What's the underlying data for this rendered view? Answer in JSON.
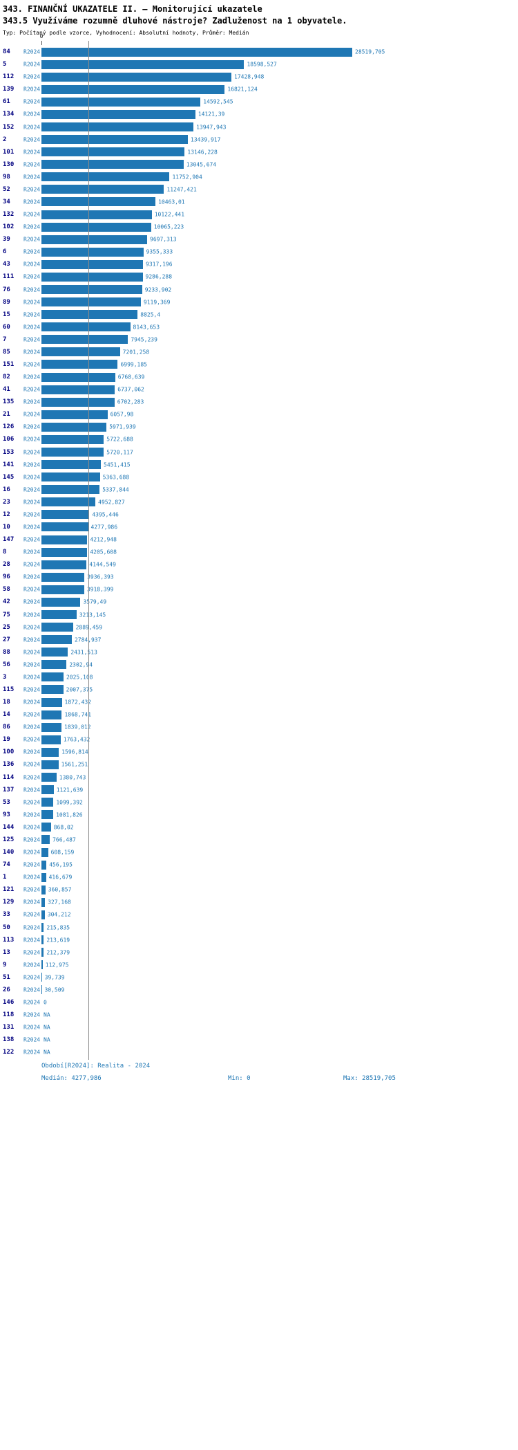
{
  "header": {
    "title": "343. FINANČNÍ UKAZATELE II. – Monitorující ukazatele",
    "subtitle": "343.5 Využíváme rozumně dluhové nástroje? Zadluženost na 1 obyvatele.",
    "meta": "Typ: Počítaný podle vzorce, Vyhodnocení: Absolutní hodnoty, Průměr: Medián"
  },
  "chart_data": {
    "type": "bar",
    "orientation": "horizontal",
    "title": "343.5 Využíváme rozumně dluhové nástroje? Zadluženost na 1 obyvatele.",
    "period": "R2024",
    "bar_color": "#1f77b4",
    "value_axis": {
      "zero_label": "0",
      "min": 0,
      "max": 28519.705
    },
    "median_value": 4277.986,
    "median_line": true,
    "rows": [
      {
        "id": "84",
        "period": "R2024",
        "value": 28519.705,
        "label": "28519,705"
      },
      {
        "id": "5",
        "period": "R2024",
        "value": 18598.527,
        "label": "18598,527"
      },
      {
        "id": "112",
        "period": "R2024",
        "value": 17428.948,
        "label": "17428,948"
      },
      {
        "id": "139",
        "period": "R2024",
        "value": 16821.124,
        "label": "16821,124"
      },
      {
        "id": "61",
        "period": "R2024",
        "value": 14592.545,
        "label": "14592,545"
      },
      {
        "id": "134",
        "period": "R2024",
        "value": 14121.39,
        "label": "14121,39"
      },
      {
        "id": "152",
        "period": "R2024",
        "value": 13947.943,
        "label": "13947,943"
      },
      {
        "id": "2",
        "period": "R2024",
        "value": 13439.917,
        "label": "13439,917"
      },
      {
        "id": "101",
        "period": "R2024",
        "value": 13146.228,
        "label": "13146,228"
      },
      {
        "id": "130",
        "period": "R2024",
        "value": 13045.674,
        "label": "13045,674"
      },
      {
        "id": "98",
        "period": "R2024",
        "value": 11752.904,
        "label": "11752,904"
      },
      {
        "id": "52",
        "period": "R2024",
        "value": 11247.421,
        "label": "11247,421"
      },
      {
        "id": "34",
        "period": "R2024",
        "value": 10463.01,
        "label": "10463,01"
      },
      {
        "id": "132",
        "period": "R2024",
        "value": 10122.441,
        "label": "10122,441"
      },
      {
        "id": "102",
        "period": "R2024",
        "value": 10065.223,
        "label": "10065,223"
      },
      {
        "id": "39",
        "period": "R2024",
        "value": 9697.313,
        "label": "9697,313"
      },
      {
        "id": "6",
        "period": "R2024",
        "value": 9355.333,
        "label": "9355,333"
      },
      {
        "id": "43",
        "period": "R2024",
        "value": 9317.196,
        "label": "9317,196"
      },
      {
        "id": "111",
        "period": "R2024",
        "value": 9286.288,
        "label": "9286,288"
      },
      {
        "id": "76",
        "period": "R2024",
        "value": 9233.902,
        "label": "9233,902"
      },
      {
        "id": "89",
        "period": "R2024",
        "value": 9119.369,
        "label": "9119,369"
      },
      {
        "id": "15",
        "period": "R2024",
        "value": 8825.4,
        "label": "8825,4"
      },
      {
        "id": "60",
        "period": "R2024",
        "value": 8143.653,
        "label": "8143,653"
      },
      {
        "id": "7",
        "period": "R2024",
        "value": 7945.239,
        "label": "7945,239"
      },
      {
        "id": "85",
        "period": "R2024",
        "value": 7201.258,
        "label": "7201,258"
      },
      {
        "id": "151",
        "period": "R2024",
        "value": 6999.185,
        "label": "6999,185"
      },
      {
        "id": "82",
        "period": "R2024",
        "value": 6768.639,
        "label": "6768,639"
      },
      {
        "id": "41",
        "period": "R2024",
        "value": 6737.062,
        "label": "6737,062"
      },
      {
        "id": "135",
        "period": "R2024",
        "value": 6702.283,
        "label": "6702,283"
      },
      {
        "id": "21",
        "period": "R2024",
        "value": 6057.98,
        "label": "6057,98"
      },
      {
        "id": "126",
        "period": "R2024",
        "value": 5971.939,
        "label": "5971,939"
      },
      {
        "id": "106",
        "period": "R2024",
        "value": 5722.688,
        "label": "5722,688"
      },
      {
        "id": "153",
        "period": "R2024",
        "value": 5720.117,
        "label": "5720,117"
      },
      {
        "id": "141",
        "period": "R2024",
        "value": 5451.415,
        "label": "5451,415"
      },
      {
        "id": "145",
        "period": "R2024",
        "value": 5363.688,
        "label": "5363,688"
      },
      {
        "id": "16",
        "period": "R2024",
        "value": 5337.844,
        "label": "5337,844"
      },
      {
        "id": "23",
        "period": "R2024",
        "value": 4952.827,
        "label": "4952,827"
      },
      {
        "id": "12",
        "period": "R2024",
        "value": 4395.446,
        "label": "4395,446"
      },
      {
        "id": "10",
        "period": "R2024",
        "value": 4277.986,
        "label": "4277,986"
      },
      {
        "id": "147",
        "period": "R2024",
        "value": 4212.948,
        "label": "4212,948"
      },
      {
        "id": "8",
        "period": "R2024",
        "value": 4205.608,
        "label": "4205,608"
      },
      {
        "id": "28",
        "period": "R2024",
        "value": 4144.549,
        "label": "4144,549"
      },
      {
        "id": "96",
        "period": "R2024",
        "value": 3936.393,
        "label": "3936,393"
      },
      {
        "id": "58",
        "period": "R2024",
        "value": 3918.399,
        "label": "3918,399"
      },
      {
        "id": "42",
        "period": "R2024",
        "value": 3579.49,
        "label": "3579,49"
      },
      {
        "id": "75",
        "period": "R2024",
        "value": 3213.145,
        "label": "3213,145"
      },
      {
        "id": "25",
        "period": "R2024",
        "value": 2889.459,
        "label": "2889,459"
      },
      {
        "id": "27",
        "period": "R2024",
        "value": 2784.937,
        "label": "2784,937"
      },
      {
        "id": "88",
        "period": "R2024",
        "value": 2431.513,
        "label": "2431,513"
      },
      {
        "id": "56",
        "period": "R2024",
        "value": 2302.94,
        "label": "2302,94"
      },
      {
        "id": "3",
        "period": "R2024",
        "value": 2025.108,
        "label": "2025,108"
      },
      {
        "id": "115",
        "period": "R2024",
        "value": 2007.375,
        "label": "2007,375"
      },
      {
        "id": "18",
        "period": "R2024",
        "value": 1872.432,
        "label": "1872,432"
      },
      {
        "id": "14",
        "period": "R2024",
        "value": 1868.741,
        "label": "1868,741"
      },
      {
        "id": "86",
        "period": "R2024",
        "value": 1839.012,
        "label": "1839,012"
      },
      {
        "id": "19",
        "period": "R2024",
        "value": 1763.432,
        "label": "1763,432"
      },
      {
        "id": "100",
        "period": "R2024",
        "value": 1596.814,
        "label": "1596,814"
      },
      {
        "id": "136",
        "period": "R2024",
        "value": 1561.251,
        "label": "1561,251"
      },
      {
        "id": "114",
        "period": "R2024",
        "value": 1380.743,
        "label": "1380,743"
      },
      {
        "id": "137",
        "period": "R2024",
        "value": 1121.639,
        "label": "1121,639"
      },
      {
        "id": "53",
        "period": "R2024",
        "value": 1099.392,
        "label": "1099,392"
      },
      {
        "id": "93",
        "period": "R2024",
        "value": 1081.826,
        "label": "1081,826"
      },
      {
        "id": "144",
        "period": "R2024",
        "value": 868.02,
        "label": "868,02"
      },
      {
        "id": "125",
        "period": "R2024",
        "value": 766.487,
        "label": "766,487"
      },
      {
        "id": "140",
        "period": "R2024",
        "value": 608.159,
        "label": "608,159"
      },
      {
        "id": "74",
        "period": "R2024",
        "value": 456.195,
        "label": "456,195"
      },
      {
        "id": "1",
        "period": "R2024",
        "value": 416.679,
        "label": "416,679"
      },
      {
        "id": "121",
        "period": "R2024",
        "value": 360.857,
        "label": "360,857"
      },
      {
        "id": "129",
        "period": "R2024",
        "value": 327.168,
        "label": "327,168"
      },
      {
        "id": "33",
        "period": "R2024",
        "value": 304.212,
        "label": "304,212"
      },
      {
        "id": "50",
        "period": "R2024",
        "value": 215.835,
        "label": "215,835"
      },
      {
        "id": "113",
        "period": "R2024",
        "value": 213.619,
        "label": "213,619"
      },
      {
        "id": "13",
        "period": "R2024",
        "value": 212.379,
        "label": "212,379"
      },
      {
        "id": "9",
        "period": "R2024",
        "value": 112.975,
        "label": "112,975"
      },
      {
        "id": "51",
        "period": "R2024",
        "value": 39.739,
        "label": "39,739"
      },
      {
        "id": "26",
        "period": "R2024",
        "value": 30.509,
        "label": "30,509"
      },
      {
        "id": "146",
        "period": "R2024",
        "value": 0,
        "label": "0"
      },
      {
        "id": "118",
        "period": "R2024",
        "value": null,
        "label": "NA"
      },
      {
        "id": "131",
        "period": "R2024",
        "value": null,
        "label": "NA"
      },
      {
        "id": "138",
        "period": "R2024",
        "value": null,
        "label": "NA"
      },
      {
        "id": "122",
        "period": "R2024",
        "value": null,
        "label": "NA"
      }
    ]
  },
  "footer": {
    "period": "Období[R2024]: Realita - 2024",
    "median": "Medián: 4277,986",
    "min": "Min: 0",
    "max": "Max: 28519,705"
  }
}
